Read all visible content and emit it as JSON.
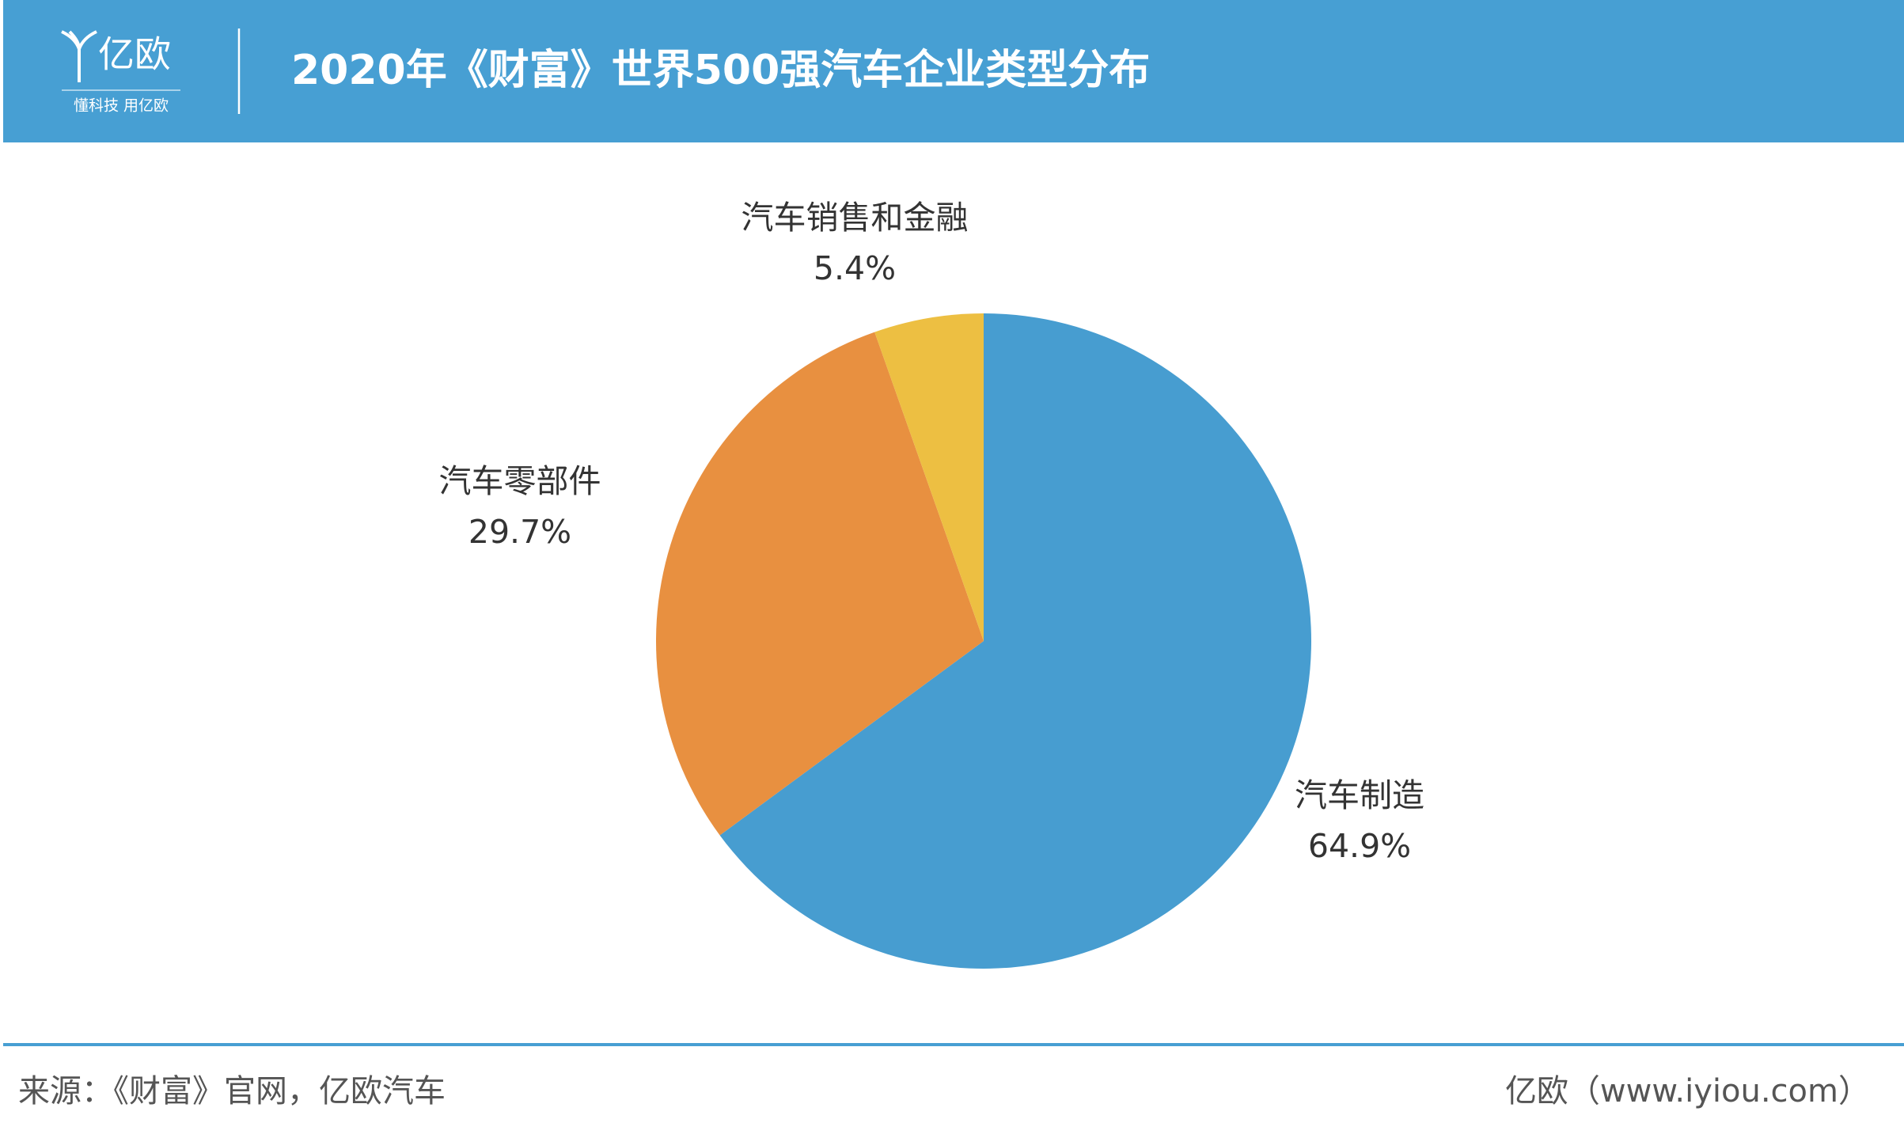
{
  "header": {
    "logo": "亿欧",
    "logo_tagline": "懂科技 用亿欧",
    "title": "2020年《财富》世界500强汽车企业类型分布"
  },
  "chart_data": {
    "type": "pie",
    "categories": [
      "汽车制造",
      "汽车零部件",
      "汽车销售和金融"
    ],
    "values": [
      64.9,
      29.7,
      5.4
    ],
    "value_labels": [
      "64.9%",
      "29.7%",
      "5.4%"
    ],
    "colors": [
      "#479dd0",
      "#e89040",
      "#edbf42"
    ]
  },
  "footer": {
    "source": "来源：《财富》官网，亿欧汽车",
    "brand": "亿欧（www.iyiou.com）"
  }
}
